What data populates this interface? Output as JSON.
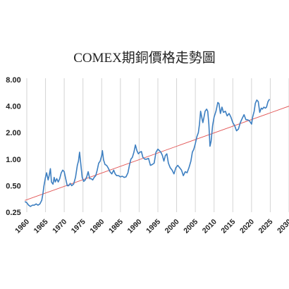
{
  "chart_data": {
    "type": "line",
    "title": "COMEX期銅價格走勢圖",
    "scale": "log",
    "ylim": [
      0.25,
      8.0
    ],
    "xlim": [
      1958.5,
      2030
    ],
    "y_ticks": [
      {
        "value": 0.25,
        "label": "0.25"
      },
      {
        "value": 0.5,
        "label": "0.50"
      },
      {
        "value": 1.0,
        "label": "1.00"
      },
      {
        "value": 2.0,
        "label": "2.00"
      },
      {
        "value": 4.0,
        "label": "4.00"
      },
      {
        "value": 8.0,
        "label": "8.00"
      }
    ],
    "x_ticks": [
      {
        "value": 1960,
        "label": "1960"
      },
      {
        "value": 1965,
        "label": "1965"
      },
      {
        "value": 1970,
        "label": "1970"
      },
      {
        "value": 1975,
        "label": "1975"
      },
      {
        "value": 1980,
        "label": "1980"
      },
      {
        "value": 1985,
        "label": "1985"
      },
      {
        "value": 1990,
        "label": "1990"
      },
      {
        "value": 1995,
        "label": "1995"
      },
      {
        "value": 2000,
        "label": "2000"
      },
      {
        "value": 2005,
        "label": "2005"
      },
      {
        "value": 2010,
        "label": "2010"
      },
      {
        "value": 2015,
        "label": "2015"
      },
      {
        "value": 2020,
        "label": "2020"
      },
      {
        "value": 2025,
        "label": "2025"
      },
      {
        "value": 2030,
        "label": "2030"
      }
    ],
    "grid": "vertical",
    "series": [
      {
        "color": "#3d7fc1",
        "x": [
          1959.5,
          1960.0,
          1960.5,
          1961.0,
          1961.5,
          1962.0,
          1962.5,
          1963.0,
          1963.5,
          1964.0,
          1964.3,
          1964.6,
          1965.0,
          1965.3,
          1965.7,
          1966.0,
          1966.3,
          1966.6,
          1967.0,
          1967.3,
          1967.6,
          1968.0,
          1968.4,
          1968.8,
          1969.2,
          1969.6,
          1970.0,
          1970.4,
          1970.8,
          1971.2,
          1971.6,
          1972.0,
          1972.5,
          1973.0,
          1973.5,
          1973.8,
          1974.1,
          1974.4,
          1974.8,
          1975.2,
          1975.6,
          1976.0,
          1976.4,
          1976.8,
          1977.2,
          1977.6,
          1978.0,
          1978.4,
          1978.8,
          1979.2,
          1979.6,
          1980.0,
          1980.2,
          1980.5,
          1980.9,
          1981.3,
          1981.7,
          1982.2,
          1982.7,
          1983.2,
          1983.6,
          1984.0,
          1984.5,
          1985.0,
          1985.5,
          1986.0,
          1986.5,
          1987.0,
          1987.4,
          1987.8,
          1988.2,
          1988.6,
          1989.0,
          1989.4,
          1989.8,
          1990.2,
          1990.6,
          1991.0,
          1991.5,
          1992.0,
          1992.5,
          1993.0,
          1993.5,
          1994.0,
          1994.5,
          1995.0,
          1995.4,
          1995.8,
          1996.2,
          1996.6,
          1997.0,
          1997.4,
          1997.8,
          1998.3,
          1998.8,
          1999.3,
          1999.8,
          2000.3,
          2000.8,
          2001.3,
          2001.8,
          2002.3,
          2002.8,
          2003.3,
          2003.8,
          2004.2,
          2004.6,
          2005.0,
          2005.4,
          2005.8,
          2006.1,
          2006.4,
          2006.7,
          2007.0,
          2007.3,
          2007.6,
          2008.0,
          2008.3,
          2008.6,
          2008.9,
          2009.2,
          2009.6,
          2010.0,
          2010.5,
          2011.0,
          2011.3,
          2011.7,
          2012.1,
          2012.5,
          2013.0,
          2013.5,
          2014.0,
          2014.5,
          2015.0,
          2015.5,
          2016.0,
          2016.5,
          2017.0,
          2017.5,
          2018.0,
          2018.5,
          2019.0,
          2019.5,
          2020.0,
          2020.3,
          2020.7,
          2021.0,
          2021.4,
          2021.8,
          2022.2,
          2022.6,
          2022.9,
          2023.3,
          2023.7,
          2024.0,
          2024.4,
          2024.8
        ],
        "y": [
          0.33,
          0.32,
          0.3,
          0.29,
          0.3,
          0.3,
          0.31,
          0.3,
          0.31,
          0.34,
          0.4,
          0.5,
          0.62,
          0.7,
          0.58,
          0.66,
          0.78,
          0.55,
          0.52,
          0.62,
          0.55,
          0.6,
          0.55,
          0.6,
          0.7,
          0.75,
          0.72,
          0.6,
          0.5,
          0.5,
          0.53,
          0.5,
          0.52,
          0.62,
          0.85,
          0.95,
          1.2,
          0.9,
          0.62,
          0.56,
          0.58,
          0.63,
          0.72,
          0.6,
          0.6,
          0.58,
          0.62,
          0.65,
          0.75,
          0.9,
          0.95,
          1.1,
          1.25,
          0.98,
          0.87,
          0.85,
          0.8,
          0.72,
          0.68,
          0.75,
          0.68,
          0.65,
          0.65,
          0.63,
          0.64,
          0.62,
          0.63,
          0.7,
          0.85,
          1.0,
          1.05,
          1.2,
          1.45,
          1.25,
          1.15,
          1.2,
          1.22,
          1.05,
          1.0,
          1.0,
          1.02,
          0.85,
          0.87,
          0.9,
          1.2,
          1.3,
          1.25,
          1.2,
          1.1,
          0.95,
          1.1,
          1.15,
          0.9,
          0.8,
          0.75,
          0.68,
          0.8,
          0.85,
          0.8,
          0.75,
          0.65,
          0.72,
          0.7,
          0.8,
          0.95,
          1.2,
          1.3,
          1.5,
          1.8,
          2.0,
          2.5,
          3.5,
          3.0,
          2.6,
          3.0,
          3.5,
          3.7,
          3.5,
          2.5,
          1.4,
          1.6,
          2.4,
          3.0,
          3.5,
          4.4,
          4.3,
          3.3,
          3.9,
          3.4,
          3.5,
          3.1,
          3.3,
          3.0,
          2.6,
          2.4,
          2.1,
          2.2,
          2.6,
          2.9,
          3.2,
          2.8,
          2.8,
          2.7,
          2.5,
          3.0,
          3.5,
          4.3,
          4.7,
          4.5,
          3.4,
          3.8,
          3.7,
          3.9,
          3.8,
          3.9,
          4.5,
          4.8
        ]
      }
    ],
    "trendline": {
      "color": "#e25454",
      "x": [
        1959.5,
        2030
      ],
      "y": [
        0.34,
        4.0
      ]
    }
  }
}
